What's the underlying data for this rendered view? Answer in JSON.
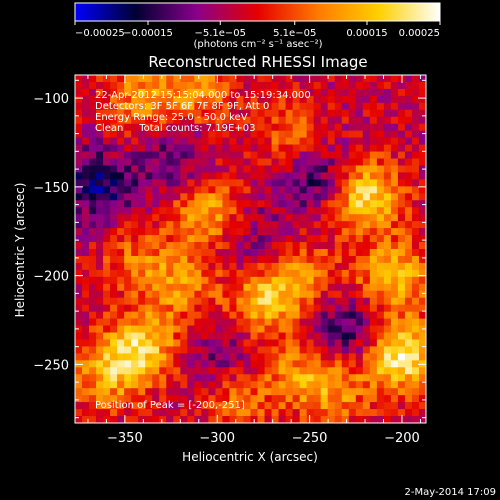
{
  "chart_data": {
    "type": "heatmap",
    "title": "Reconstructed RHESSI Image",
    "xlabel": "Heliocentric X (arcsec)",
    "ylabel": "Heliocentric Y (arcsec)",
    "xlim": [
      -377,
      -187
    ],
    "ylim": [
      -283,
      -87
    ],
    "x_ticks": [
      -350,
      -300,
      -250,
      -200
    ],
    "y_ticks": [
      -100,
      -150,
      -200,
      -250
    ],
    "x_tick_labels": [
      "−350",
      "−300",
      "−250",
      "−200"
    ],
    "y_tick_labels": [
      "−100",
      "−150",
      "−200",
      "−250"
    ],
    "colorbar": {
      "range": [
        -0.00025,
        0.00025
      ],
      "tick_values": [
        -0.00025,
        -0.00015,
        -5.1e-05,
        5.1e-05,
        0.00015,
        0.00025
      ],
      "tick_labels": [
        "−0.00025",
        "−0.00015",
        "−5.1e−05",
        "5.1e−05",
        "0.00015",
        "0.00025"
      ],
      "unit_label": "(photons cm⁻² s⁻¹ asec⁻²)",
      "colormap_stops": [
        "#0000ff",
        "#000033",
        "#8a008a",
        "#e50000",
        "#ff7a00",
        "#ffd000",
        "#ffffff"
      ]
    },
    "annotations": [
      "22-Apr-2012 15:15:04.000 to 15:19:34.000",
      "Detectors: 3F 5F 6F 7F 8F 9F, Att 0",
      "Energy Range: 25.0 - 50.0 keV",
      "Clean     Total counts: 7.19E+03"
    ],
    "peak_label": "Position of Peak = [-200,-251]",
    "peak_position": [
      -200,
      -251
    ],
    "blobs": [
      {
        "x": -220,
        "y": -155,
        "v": 0.00023
      },
      {
        "x": -200,
        "y": -245,
        "v": 0.00025
      },
      {
        "x": -205,
        "y": -200,
        "v": 0.00018
      },
      {
        "x": -255,
        "y": -200,
        "v": 0.00012
      },
      {
        "x": -340,
        "y": -240,
        "v": 0.00019
      },
      {
        "x": -360,
        "y": -255,
        "v": 0.00015
      },
      {
        "x": -305,
        "y": -165,
        "v": 0.00016
      },
      {
        "x": -275,
        "y": -215,
        "v": 0.00017
      },
      {
        "x": -320,
        "y": -205,
        "v": 0.00013
      },
      {
        "x": -255,
        "y": -255,
        "v": 0.00012
      },
      {
        "x": -235,
        "y": -265,
        "v": 0.00011
      },
      {
        "x": -290,
        "y": -270,
        "v": 0.0001
      },
      {
        "x": -340,
        "y": -100,
        "v": 0.00014
      },
      {
        "x": -310,
        "y": -95,
        "v": 0.00012
      },
      {
        "x": -260,
        "y": -120,
        "v": 0.0001
      },
      {
        "x": -345,
        "y": -190,
        "v": 9e-05
      },
      {
        "x": -365,
        "y": -150,
        "v": -0.00014
      },
      {
        "x": -245,
        "y": -145,
        "v": -0.00012
      },
      {
        "x": -230,
        "y": -230,
        "v": -0.00013
      },
      {
        "x": -325,
        "y": -135,
        "v": -9e-05
      },
      {
        "x": -280,
        "y": -180,
        "v": -8e-05
      },
      {
        "x": -300,
        "y": -245,
        "v": -8e-05
      }
    ]
  },
  "footer": {
    "timestamp": "2-May-2014 17:09"
  }
}
